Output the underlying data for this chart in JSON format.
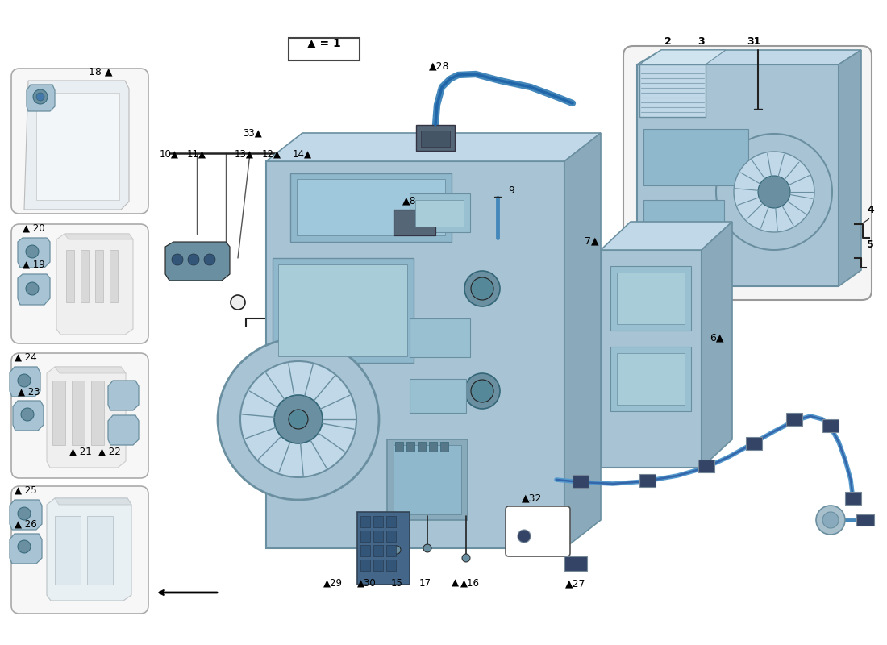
{
  "bg": "#ffffff",
  "bc": "#a8c4d4",
  "dc": "#6a8fa0",
  "mc": "#c0d8e8",
  "lc": "#222222",
  "wc": "#4477aa",
  "tri": "▲",
  "legend": "▲ = 1"
}
